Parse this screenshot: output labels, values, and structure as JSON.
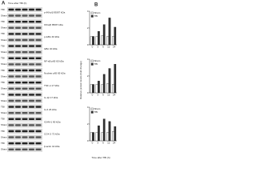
{
  "panel_a": {
    "label": "A",
    "header": "Time after TBI (h)",
    "conditions": [
      "TBI",
      "Sham"
    ],
    "rows": [
      "p-IKKα/β 85/87 kDa",
      "IKKα/β 85/87 kDa",
      "p-IκBα 40 kDa",
      "IκBα 40 kDa",
      "NF-κB p65 65 kDa",
      "Nuclear p65 65 kDa",
      "TNF-α 17 kDa",
      "IL-1β 17 kDa",
      "IL-6 26 kDa",
      "ICAM-1 90 kDa",
      "COX-2 72 kDa",
      "β-actin 42 kDa"
    ]
  },
  "panel_b": {
    "label": "B",
    "y_label": "Relative protein levels (fold change)",
    "x_label": "Time after TBI (h)",
    "charts": [
      {
        "categories": [
          "0",
          "3",
          "6",
          "12",
          "24"
        ],
        "ylim": [
          0,
          4
        ],
        "yticks": [
          0,
          2,
          4
        ],
        "series": [
          {
            "name": "Sham",
            "color": "#ffffff",
            "values": [
              1,
              1,
              1.1,
              1,
              1
            ]
          },
          {
            "name": "TBI",
            "color": "#333333",
            "values": [
              1,
              1.6,
              2.4,
              3.2,
              2.1
            ]
          }
        ]
      },
      {
        "categories": [
          "0",
          "3",
          "6",
          "12",
          "24"
        ],
        "ylim": [
          0,
          4
        ],
        "yticks": [
          0,
          2,
          4
        ],
        "series": [
          {
            "name": "Sham",
            "color": "#ffffff",
            "values": [
              1,
              1,
              1,
              1.1,
              1
            ]
          },
          {
            "name": "TBI",
            "color": "#333333",
            "values": [
              1,
              1.4,
              2.2,
              2.9,
              3.4
            ]
          }
        ]
      },
      {
        "categories": [
          "0",
          "3",
          "6",
          "12",
          "24"
        ],
        "ylim": [
          0,
          4
        ],
        "yticks": [
          0,
          2,
          4
        ],
        "series": [
          {
            "name": "Sham",
            "color": "#ffffff",
            "values": [
              1,
              1,
              1,
              1,
              1.1
            ]
          },
          {
            "name": "TBI",
            "color": "#333333",
            "values": [
              1,
              1.8,
              2.6,
              2.3,
              1.7
            ]
          }
        ]
      }
    ]
  }
}
